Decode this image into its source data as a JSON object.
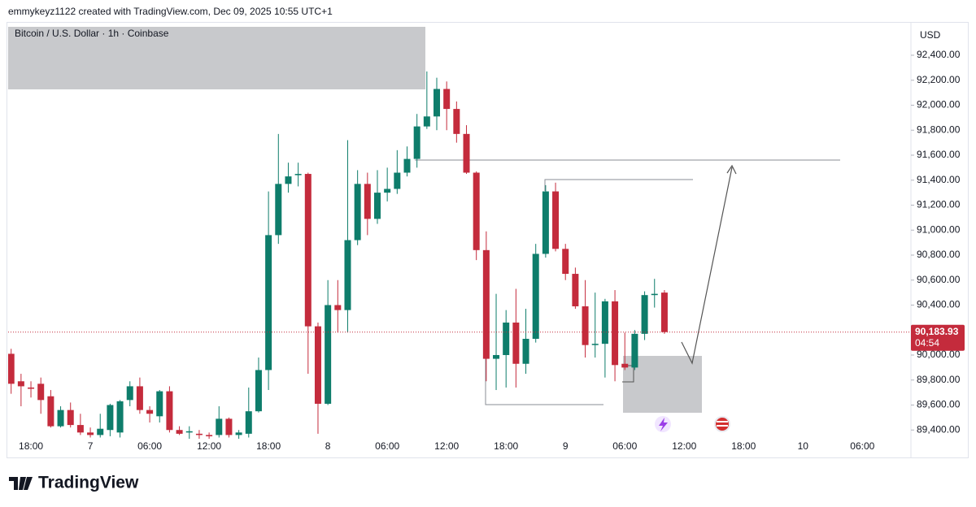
{
  "header": "emmykeyz1122 created with TradingView.com, Dec 09, 2025 10:55 UTC+1",
  "brand": "TradingView",
  "chart_data": {
    "type": "candlestick",
    "title": "Bitcoin / U.S. Dollar · 1h · Coinbase",
    "y_axis_label": "USD",
    "up_color": "#0e7d6b",
    "down_color": "#c42b3c",
    "grid": false,
    "ylim": [
      89330,
      92660
    ],
    "yticks": [
      {
        "value": 89400,
        "label": "89,400.00"
      },
      {
        "value": 89600,
        "label": "89,600.00"
      },
      {
        "value": 89800,
        "label": "89,800.00"
      },
      {
        "value": 90000,
        "label": "90,000.00"
      },
      {
        "value": 90200,
        "label": "90,200.00"
      },
      {
        "value": 90400,
        "label": "90,400.00"
      },
      {
        "value": 90600,
        "label": "90,600.00"
      },
      {
        "value": 90800,
        "label": "90,800.00"
      },
      {
        "value": 91000,
        "label": "91,000.00"
      },
      {
        "value": 91200,
        "label": "91,200.00"
      },
      {
        "value": 91400,
        "label": "91,400.00"
      },
      {
        "value": 91600,
        "label": "91,600.00"
      },
      {
        "value": 91800,
        "label": "91,800.00"
      },
      {
        "value": 92000,
        "label": "92,000.00"
      },
      {
        "value": 92200,
        "label": "92,200.00"
      },
      {
        "value": 92400,
        "label": "92,400.00"
      }
    ],
    "last_price": {
      "value": 90183.93,
      "label": "90,183.93"
    },
    "countdown": "04:54",
    "categories": [
      null,
      null,
      "18:00",
      null,
      null,
      null,
      null,
      null,
      "7",
      null,
      null,
      null,
      null,
      null,
      "06:00",
      null,
      null,
      null,
      null,
      null,
      "12:00",
      null,
      null,
      null,
      null,
      null,
      "18:00",
      null,
      null,
      null,
      null,
      null,
      "8",
      null,
      null,
      null,
      null,
      null,
      "06:00",
      null,
      null,
      null,
      null,
      null,
      "12:00",
      null,
      null,
      null,
      null,
      null,
      "18:00",
      null,
      null,
      null,
      null,
      null,
      "9",
      null,
      null,
      null,
      null,
      null,
      "06:00",
      null,
      null,
      null,
      null,
      null,
      "12:00",
      null,
      null,
      null,
      null,
      null,
      "18:00",
      null,
      null,
      null,
      null,
      null,
      "10",
      null,
      null,
      null,
      null,
      null,
      "06:00",
      null,
      null
    ],
    "open": [
      90010,
      89790,
      89740,
      89770,
      89670,
      89430,
      89560,
      89440,
      89380,
      89360,
      89400,
      89380,
      89640,
      89750,
      89560,
      89510,
      89710,
      89400,
      89380,
      89370,
      89360,
      89360,
      89490,
      89360,
      89370,
      89550,
      89880,
      90960,
      91370,
      91440,
      91450,
      90230,
      89610,
      90400,
      90360,
      90920,
      91370,
      91090,
      91300,
      91330,
      91460,
      91570,
      91830,
      91910,
      92130,
      91970,
      91770,
      91460,
      90840,
      89970,
      90000,
      90260,
      89930,
      90130,
      90810,
      91310,
      90850,
      90650,
      90390,
      90080,
      90090,
      90430,
      89930,
      89900,
      90170,
      90480,
      90500,
      null,
      null,
      null,
      null,
      null,
      null,
      null,
      null,
      null,
      null,
      null,
      null,
      null,
      null,
      null,
      null,
      null,
      null,
      null,
      null,
      null,
      null
    ],
    "high": [
      90050,
      89850,
      89790,
      89820,
      89720,
      89590,
      89620,
      89530,
      89420,
      89530,
      89610,
      89640,
      89790,
      89820,
      89590,
      89720,
      89750,
      89430,
      89430,
      89400,
      89380,
      89590,
      89500,
      89400,
      89740,
      89980,
      91310,
      91770,
      91540,
      91540,
      91460,
      90260,
      90600,
      90600,
      91720,
      91480,
      91460,
      91480,
      91500,
      91640,
      91670,
      91930,
      92270,
      92220,
      92190,
      92030,
      91840,
      91470,
      90990,
      90490,
      90360,
      90530,
      90370,
      90890,
      91360,
      91380,
      90890,
      90700,
      90600,
      90500,
      90450,
      90520,
      90180,
      90200,
      90510,
      90610,
      90520,
      null,
      null,
      null,
      null,
      null,
      null,
      null,
      null,
      null,
      null,
      null,
      null,
      null,
      null,
      null,
      null,
      null,
      null,
      null,
      null,
      null,
      null
    ],
    "low": [
      89690,
      89590,
      89660,
      89530,
      89420,
      89420,
      89420,
      89360,
      89340,
      89340,
      89350,
      89340,
      89590,
      89530,
      89460,
      89460,
      89380,
      89360,
      89330,
      89330,
      89330,
      89340,
      89340,
      89330,
      89340,
      89540,
      89720,
      90890,
      91300,
      91350,
      89850,
      89370,
      89600,
      90180,
      90180,
      90880,
      90960,
      91050,
      91230,
      91290,
      91430,
      91500,
      91810,
      91800,
      91800,
      91700,
      91450,
      90760,
      89790,
      89720,
      89740,
      89740,
      89850,
      90100,
      90780,
      90830,
      90600,
      90370,
      89980,
      89980,
      89820,
      89790,
      89880,
      89880,
      90120,
      90380,
      90170,
      null,
      null,
      null,
      null,
      null,
      null,
      null,
      null,
      null,
      null,
      null,
      null,
      null,
      null,
      null,
      null,
      null,
      null,
      null,
      null,
      null,
      null
    ],
    "close": [
      89770,
      89750,
      89730,
      89640,
      89430,
      89560,
      89440,
      89380,
      89360,
      89410,
      89600,
      89630,
      89750,
      89560,
      89530,
      89710,
      89400,
      89370,
      89390,
      89360,
      89350,
      89490,
      89360,
      89380,
      89550,
      89880,
      90960,
      91370,
      91430,
      91450,
      90230,
      89610,
      90400,
      90360,
      90920,
      91370,
      91090,
      91300,
      91330,
      91460,
      91570,
      91830,
      91910,
      92130,
      91970,
      91770,
      91460,
      90840,
      89970,
      90000,
      90260,
      89930,
      90130,
      90810,
      91310,
      90850,
      90650,
      90390,
      90080,
      90090,
      90430,
      89920,
      89900,
      90170,
      90480,
      90490,
      90183.93,
      null,
      null,
      null,
      null,
      null,
      null,
      null,
      null,
      null,
      null,
      null,
      null,
      null,
      null,
      null,
      null,
      null,
      null,
      null,
      null,
      null,
      null
    ]
  }
}
